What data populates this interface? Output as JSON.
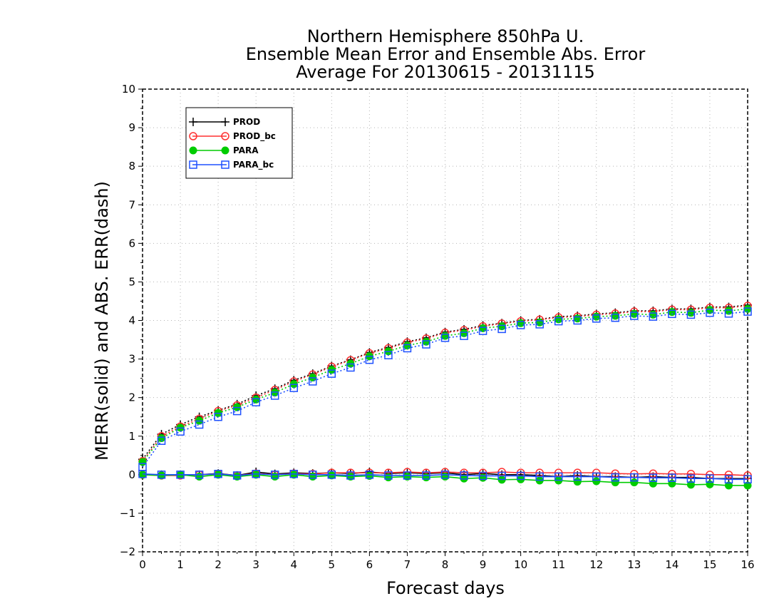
{
  "chart_data": {
    "type": "line",
    "title_lines": [
      "Northern Hemisphere 850hPa U.",
      "Ensemble Mean Error and Ensemble Abs. Error",
      "Average For 20130615 - 20131115"
    ],
    "xlabel": "Forecast days",
    "ylabel": "MERR(solid) and ABS. ERR(dash)",
    "xlim": [
      0,
      16
    ],
    "ylim": [
      -2,
      10
    ],
    "xticks": [
      "0",
      "1",
      "2",
      "3",
      "4",
      "5",
      "6",
      "7",
      "8",
      "9",
      "10",
      "11",
      "12",
      "13",
      "14",
      "15",
      "16"
    ],
    "yticks": [
      "-2",
      "-1",
      "0",
      "1",
      "2",
      "3",
      "4",
      "5",
      "6",
      "7",
      "8",
      "9",
      "10"
    ],
    "grid": true,
    "legend_position": "top-left",
    "x": [
      0,
      0.5,
      1,
      1.5,
      2,
      2.5,
      3,
      3.5,
      4,
      4.5,
      5,
      5.5,
      6,
      6.5,
      7,
      7.5,
      8,
      8.5,
      9,
      9.5,
      10,
      10.5,
      11,
      11.5,
      12,
      12.5,
      13,
      13.5,
      14,
      14.5,
      15,
      15.5,
      16
    ],
    "series": [
      {
        "name": "PROD",
        "color": "#000000",
        "marker": "plus",
        "merr": [
          0.0,
          0.0,
          0.0,
          0.0,
          0.03,
          -0.02,
          0.07,
          0.02,
          0.05,
          0.03,
          0.05,
          0.03,
          0.07,
          0.03,
          0.05,
          0.03,
          0.05,
          0.0,
          0.03,
          0.0,
          0.0,
          -0.02,
          -0.05,
          -0.02,
          -0.05,
          -0.05,
          -0.07,
          -0.05,
          -0.07,
          -0.07,
          -0.1,
          -0.1,
          -0.1
        ],
        "abs_err": [
          0.4,
          1.05,
          1.3,
          1.5,
          1.67,
          1.83,
          2.05,
          2.23,
          2.45,
          2.62,
          2.82,
          2.98,
          3.17,
          3.3,
          3.45,
          3.55,
          3.7,
          3.77,
          3.87,
          3.93,
          4.0,
          4.03,
          4.1,
          4.12,
          4.17,
          4.2,
          4.25,
          4.25,
          4.3,
          4.3,
          4.35,
          4.35,
          4.4
        ]
      },
      {
        "name": "PROD_bc",
        "color": "#ff3030",
        "marker": "circle",
        "merr": [
          0.0,
          -0.02,
          -0.02,
          0.0,
          0.02,
          -0.02,
          0.03,
          0.0,
          0.03,
          0.02,
          0.05,
          0.05,
          0.05,
          0.05,
          0.07,
          0.05,
          0.07,
          0.05,
          0.05,
          0.07,
          0.05,
          0.05,
          0.05,
          0.05,
          0.05,
          0.03,
          0.02,
          0.03,
          0.02,
          0.02,
          0.0,
          0.0,
          -0.02
        ],
        "abs_err": [
          0.35,
          1.0,
          1.25,
          1.45,
          1.65,
          1.8,
          2.0,
          2.2,
          2.42,
          2.6,
          2.8,
          2.97,
          3.15,
          3.28,
          3.43,
          3.53,
          3.68,
          3.75,
          3.85,
          3.92,
          3.98,
          4.02,
          4.08,
          4.1,
          4.15,
          4.18,
          4.23,
          4.23,
          4.28,
          4.28,
          4.33,
          4.33,
          4.38
        ]
      },
      {
        "name": "PARA",
        "color": "#00cc00",
        "marker": "filled-circle",
        "merr": [
          0.0,
          -0.02,
          0.0,
          -0.05,
          0.0,
          -0.05,
          0.0,
          -0.05,
          0.0,
          -0.05,
          -0.02,
          -0.05,
          -0.03,
          -0.07,
          -0.05,
          -0.07,
          -0.05,
          -0.1,
          -0.08,
          -0.13,
          -0.12,
          -0.15,
          -0.15,
          -0.18,
          -0.17,
          -0.2,
          -0.2,
          -0.23,
          -0.23,
          -0.26,
          -0.25,
          -0.28,
          -0.28
        ],
        "abs_err": [
          0.33,
          0.95,
          1.22,
          1.4,
          1.6,
          1.75,
          1.95,
          2.13,
          2.35,
          2.52,
          2.72,
          2.88,
          3.07,
          3.2,
          3.35,
          3.45,
          3.6,
          3.67,
          3.8,
          3.85,
          3.93,
          3.95,
          4.03,
          4.05,
          4.1,
          4.12,
          4.17,
          4.15,
          4.22,
          4.2,
          4.27,
          4.25,
          4.3
        ]
      },
      {
        "name": "PARA_bc",
        "color": "#1e50ff",
        "marker": "square",
        "merr": [
          0.02,
          0.0,
          0.0,
          0.0,
          0.02,
          -0.02,
          0.02,
          0.0,
          0.02,
          0.0,
          0.0,
          -0.02,
          0.0,
          -0.02,
          -0.02,
          -0.02,
          0.0,
          -0.02,
          -0.03,
          -0.03,
          -0.03,
          -0.05,
          -0.05,
          -0.05,
          -0.05,
          -0.07,
          -0.07,
          -0.08,
          -0.08,
          -0.1,
          -0.1,
          -0.12,
          -0.12
        ],
        "abs_err": [
          0.2,
          0.88,
          1.12,
          1.3,
          1.5,
          1.65,
          1.88,
          2.05,
          2.25,
          2.42,
          2.62,
          2.78,
          2.98,
          3.1,
          3.28,
          3.38,
          3.55,
          3.6,
          3.73,
          3.78,
          3.88,
          3.9,
          3.98,
          4.0,
          4.05,
          4.07,
          4.12,
          4.1,
          4.17,
          4.15,
          4.2,
          4.18,
          4.23
        ]
      }
    ]
  }
}
